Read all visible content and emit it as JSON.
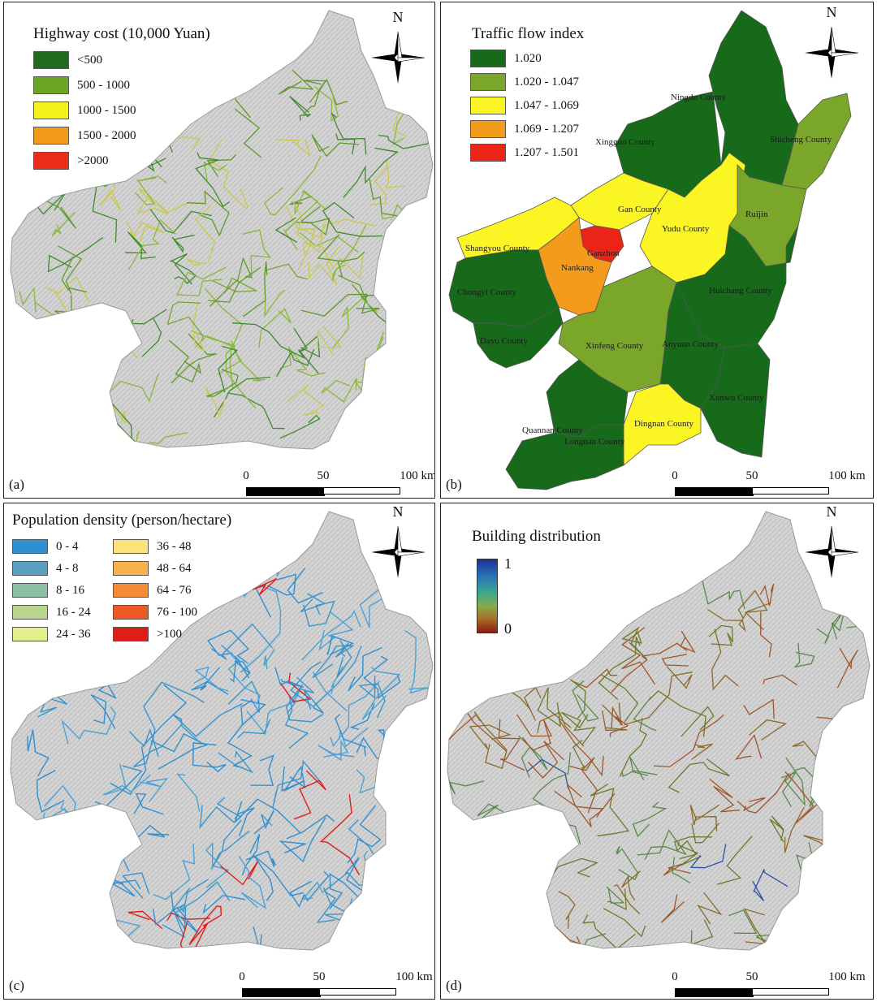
{
  "panels": {
    "a": {
      "label": "(a)",
      "legend_title": "Highway cost (10,000 Yuan)",
      "legend": [
        {
          "label": "<500",
          "color": "#1f6a1c"
        },
        {
          "label": "500 - 1000",
          "color": "#6aa624"
        },
        {
          "label": "1000 - 1500",
          "color": "#f4f21a"
        },
        {
          "label": "1500 - 2000",
          "color": "#f29a1a"
        },
        {
          "label": ">2000",
          "color": "#ec2b18"
        }
      ],
      "north": "N",
      "scale": [
        "0",
        "50",
        "100 km"
      ]
    },
    "b": {
      "label": "(b)",
      "legend_title": "Traffic flow index",
      "legend": [
        {
          "label": "1.020",
          "color": "#176a1a"
        },
        {
          "label": "1.020 - 1.047",
          "color": "#7aa72a"
        },
        {
          "label": "1.047 - 1.069",
          "color": "#fbf623"
        },
        {
          "label": "1.069 - 1.207",
          "color": "#f59b1c"
        },
        {
          "label": "1.207 - 1.501",
          "color": "#ec2418"
        }
      ],
      "north": "N",
      "scale": [
        "0",
        "50",
        "100 km"
      ],
      "counties": [
        {
          "name": "Ningdu County",
          "index": "1.020"
        },
        {
          "name": "Shicheng County",
          "index": "1.020 - 1.047"
        },
        {
          "name": "Xingguo County",
          "index": "1.020"
        },
        {
          "name": "Gan County",
          "index": "1.047 - 1.069"
        },
        {
          "name": "Yudu County",
          "index": "1.047 - 1.069"
        },
        {
          "name": "Ruijin",
          "index": "1.020 - 1.047"
        },
        {
          "name": "Shangyou County",
          "index": "1.047 - 1.069"
        },
        {
          "name": "Ganzhou",
          "index": "1.207 - 1.501"
        },
        {
          "name": "Nankang",
          "index": "1.069 - 1.207"
        },
        {
          "name": "Chongyi County",
          "index": "1.020"
        },
        {
          "name": "Huichang County",
          "index": "1.020"
        },
        {
          "name": "Dayu County",
          "index": "1.020"
        },
        {
          "name": "Xinfeng County",
          "index": "1.020 - 1.047"
        },
        {
          "name": "Anyuan County",
          "index": "1.020"
        },
        {
          "name": "Xunwu County",
          "index": "1.020"
        },
        {
          "name": "Dingnan County",
          "index": "1.047 - 1.069"
        },
        {
          "name": "Quannan County",
          "index": "1.020"
        },
        {
          "name": "Longnan County",
          "index": "1.020"
        }
      ]
    },
    "c": {
      "label": "(c)",
      "legend_title": "Population density (person/hectare)",
      "legend_left": [
        {
          "label": "0 - 4",
          "color": "#2f8fd0"
        },
        {
          "label": "4 - 8",
          "color": "#5a9fbf"
        },
        {
          "label": "8 - 16",
          "color": "#8cbfa6"
        },
        {
          "label": "16 - 24",
          "color": "#b8d690"
        },
        {
          "label": "24 - 36",
          "color": "#e4ee8a"
        }
      ],
      "legend_right": [
        {
          "label": "36 - 48",
          "color": "#fbe27a"
        },
        {
          "label": "48 - 64",
          "color": "#f8b24e"
        },
        {
          "label": "64 - 76",
          "color": "#f58a34"
        },
        {
          "label": "76 - 100",
          "color": "#ee5a26"
        },
        {
          "label": ">100",
          "color": "#e01e18"
        }
      ],
      "north": "N",
      "scale": [
        "0",
        "50",
        "100 km"
      ]
    },
    "d": {
      "label": "(d)",
      "legend_title": "Building distribution",
      "gradient_max": "1",
      "gradient_min": "0",
      "north": "N",
      "scale": [
        "0",
        "50",
        "100 km"
      ]
    }
  },
  "colors": {
    "terrain": "#cfcfcf",
    "terrain_stroke": "#9a9a9a"
  }
}
